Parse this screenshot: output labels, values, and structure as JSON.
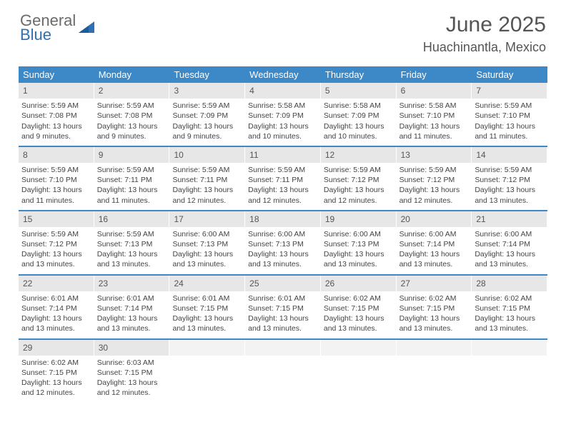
{
  "logo": {
    "word1": "General",
    "word2": "Blue",
    "icon_color": "#2f6fb3",
    "word1_color": "#6b6b6b",
    "word2_color": "#2f6fb3"
  },
  "title": "June 2025",
  "location": "Huachinantla, Mexico",
  "header_bg": "#3d88c7",
  "daynum_bg": "#e7e7e7",
  "rule_color": "#3d88c7",
  "dow": [
    "Sunday",
    "Monday",
    "Tuesday",
    "Wednesday",
    "Thursday",
    "Friday",
    "Saturday"
  ],
  "weeks": [
    [
      {
        "n": "1",
        "sr": "5:59 AM",
        "ss": "7:08 PM",
        "dl": "13 hours and 9 minutes."
      },
      {
        "n": "2",
        "sr": "5:59 AM",
        "ss": "7:08 PM",
        "dl": "13 hours and 9 minutes."
      },
      {
        "n": "3",
        "sr": "5:59 AM",
        "ss": "7:09 PM",
        "dl": "13 hours and 9 minutes."
      },
      {
        "n": "4",
        "sr": "5:58 AM",
        "ss": "7:09 PM",
        "dl": "13 hours and 10 minutes."
      },
      {
        "n": "5",
        "sr": "5:58 AM",
        "ss": "7:09 PM",
        "dl": "13 hours and 10 minutes."
      },
      {
        "n": "6",
        "sr": "5:58 AM",
        "ss": "7:10 PM",
        "dl": "13 hours and 11 minutes."
      },
      {
        "n": "7",
        "sr": "5:59 AM",
        "ss": "7:10 PM",
        "dl": "13 hours and 11 minutes."
      }
    ],
    [
      {
        "n": "8",
        "sr": "5:59 AM",
        "ss": "7:10 PM",
        "dl": "13 hours and 11 minutes."
      },
      {
        "n": "9",
        "sr": "5:59 AM",
        "ss": "7:11 PM",
        "dl": "13 hours and 11 minutes."
      },
      {
        "n": "10",
        "sr": "5:59 AM",
        "ss": "7:11 PM",
        "dl": "13 hours and 12 minutes."
      },
      {
        "n": "11",
        "sr": "5:59 AM",
        "ss": "7:11 PM",
        "dl": "13 hours and 12 minutes."
      },
      {
        "n": "12",
        "sr": "5:59 AM",
        "ss": "7:12 PM",
        "dl": "13 hours and 12 minutes."
      },
      {
        "n": "13",
        "sr": "5:59 AM",
        "ss": "7:12 PM",
        "dl": "13 hours and 12 minutes."
      },
      {
        "n": "14",
        "sr": "5:59 AM",
        "ss": "7:12 PM",
        "dl": "13 hours and 13 minutes."
      }
    ],
    [
      {
        "n": "15",
        "sr": "5:59 AM",
        "ss": "7:12 PM",
        "dl": "13 hours and 13 minutes."
      },
      {
        "n": "16",
        "sr": "5:59 AM",
        "ss": "7:13 PM",
        "dl": "13 hours and 13 minutes."
      },
      {
        "n": "17",
        "sr": "6:00 AM",
        "ss": "7:13 PM",
        "dl": "13 hours and 13 minutes."
      },
      {
        "n": "18",
        "sr": "6:00 AM",
        "ss": "7:13 PM",
        "dl": "13 hours and 13 minutes."
      },
      {
        "n": "19",
        "sr": "6:00 AM",
        "ss": "7:13 PM",
        "dl": "13 hours and 13 minutes."
      },
      {
        "n": "20",
        "sr": "6:00 AM",
        "ss": "7:14 PM",
        "dl": "13 hours and 13 minutes."
      },
      {
        "n": "21",
        "sr": "6:00 AM",
        "ss": "7:14 PM",
        "dl": "13 hours and 13 minutes."
      }
    ],
    [
      {
        "n": "22",
        "sr": "6:01 AM",
        "ss": "7:14 PM",
        "dl": "13 hours and 13 minutes."
      },
      {
        "n": "23",
        "sr": "6:01 AM",
        "ss": "7:14 PM",
        "dl": "13 hours and 13 minutes."
      },
      {
        "n": "24",
        "sr": "6:01 AM",
        "ss": "7:15 PM",
        "dl": "13 hours and 13 minutes."
      },
      {
        "n": "25",
        "sr": "6:01 AM",
        "ss": "7:15 PM",
        "dl": "13 hours and 13 minutes."
      },
      {
        "n": "26",
        "sr": "6:02 AM",
        "ss": "7:15 PM",
        "dl": "13 hours and 13 minutes."
      },
      {
        "n": "27",
        "sr": "6:02 AM",
        "ss": "7:15 PM",
        "dl": "13 hours and 13 minutes."
      },
      {
        "n": "28",
        "sr": "6:02 AM",
        "ss": "7:15 PM",
        "dl": "13 hours and 13 minutes."
      }
    ],
    [
      {
        "n": "29",
        "sr": "6:02 AM",
        "ss": "7:15 PM",
        "dl": "13 hours and 12 minutes."
      },
      {
        "n": "30",
        "sr": "6:03 AM",
        "ss": "7:15 PM",
        "dl": "13 hours and 12 minutes."
      },
      {
        "blank": true
      },
      {
        "blank": true
      },
      {
        "blank": true
      },
      {
        "blank": true
      },
      {
        "blank": true
      }
    ]
  ],
  "labels": {
    "sunrise": "Sunrise: ",
    "sunset": "Sunset: ",
    "daylight": "Daylight: "
  }
}
